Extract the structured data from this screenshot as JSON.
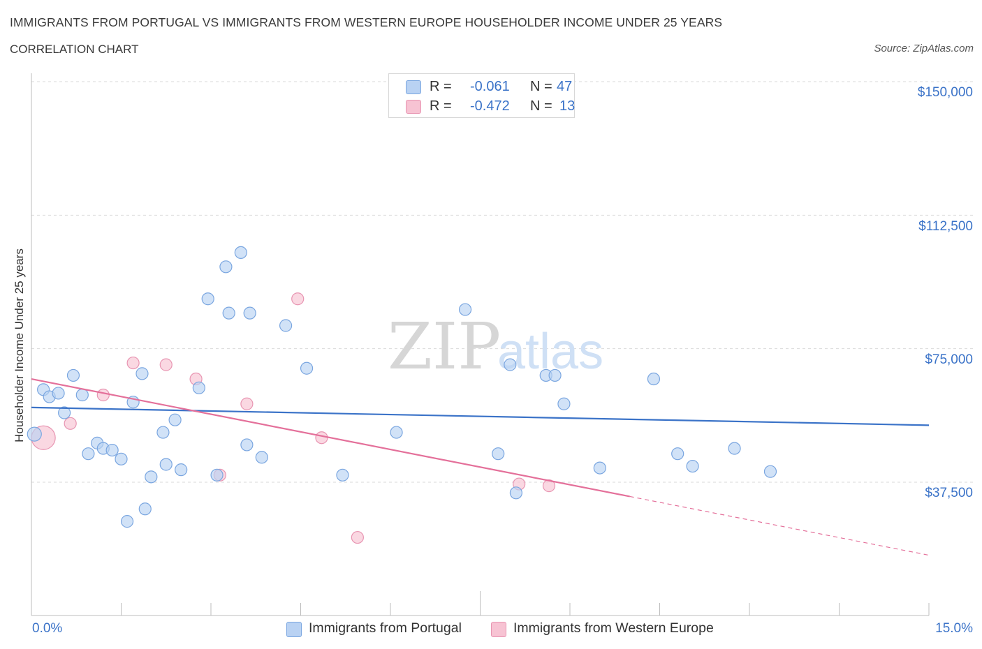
{
  "title": "IMMIGRANTS FROM PORTUGAL VS IMMIGRANTS FROM WESTERN EUROPE HOUSEHOLDER INCOME UNDER 25 YEARS",
  "subtitle": "CORRELATION CHART",
  "source": "Source: ZipAtlas.com",
  "watermark": {
    "zip": "ZIP",
    "atlas": "atlas"
  },
  "colors": {
    "blue": "#3b73c8",
    "blue_fill": "#b9d2f3",
    "blue_stroke": "#7aa6e0",
    "pink": "#e4709a",
    "pink_fill": "#f7c3d3",
    "pink_stroke": "#e895b2",
    "grid": "#d9d9d9"
  },
  "legend": {
    "rows": [
      {
        "r_label": "R =",
        "r_value": "-0.061",
        "n_label": "N =",
        "n_value": "47"
      },
      {
        "r_label": "R =",
        "r_value": "-0.472",
        "n_label": "N =",
        "n_value": "13"
      }
    ]
  },
  "chart_data": {
    "type": "scatter",
    "title": "IMMIGRANTS FROM PORTUGAL VS IMMIGRANTS FROM WESTERN EUROPE HOUSEHOLDER INCOME UNDER 25 YEARS",
    "xlabel": "",
    "ylabel": "Householder Income Under 25 years",
    "xlim": [
      0,
      15
    ],
    "ylim": [
      0,
      152000
    ],
    "x_tick_labels": [
      "0.0%",
      "15.0%"
    ],
    "y_ticks": [
      37500,
      75000,
      112500,
      150000
    ],
    "y_tick_labels": [
      "$37,500",
      "$75,000",
      "$112,500",
      "$150,000"
    ],
    "grid": true,
    "series": [
      {
        "name": "Immigrants from Portugal",
        "color": "#3b73c8",
        "points": [
          {
            "x": 0.05,
            "y": 51000,
            "size": "large"
          },
          {
            "x": 0.2,
            "y": 63500
          },
          {
            "x": 0.3,
            "y": 61500
          },
          {
            "x": 0.45,
            "y": 62500
          },
          {
            "x": 0.55,
            "y": 57000
          },
          {
            "x": 0.7,
            "y": 67500
          },
          {
            "x": 0.85,
            "y": 62000
          },
          {
            "x": 0.95,
            "y": 45500
          },
          {
            "x": 1.1,
            "y": 48500
          },
          {
            "x": 1.2,
            "y": 47000
          },
          {
            "x": 1.35,
            "y": 46500
          },
          {
            "x": 1.5,
            "y": 44000
          },
          {
            "x": 1.6,
            "y": 26500
          },
          {
            "x": 1.7,
            "y": 60000
          },
          {
            "x": 1.85,
            "y": 68000
          },
          {
            "x": 1.9,
            "y": 30000
          },
          {
            "x": 2.0,
            "y": 39000
          },
          {
            "x": 2.2,
            "y": 51500
          },
          {
            "x": 2.25,
            "y": 42500
          },
          {
            "x": 2.4,
            "y": 55000
          },
          {
            "x": 2.5,
            "y": 41000
          },
          {
            "x": 2.8,
            "y": 64000
          },
          {
            "x": 2.95,
            "y": 89000
          },
          {
            "x": 3.1,
            "y": 39500
          },
          {
            "x": 3.25,
            "y": 98000
          },
          {
            "x": 3.3,
            "y": 85000
          },
          {
            "x": 3.5,
            "y": 102000
          },
          {
            "x": 3.6,
            "y": 48000
          },
          {
            "x": 3.65,
            "y": 85000
          },
          {
            "x": 3.85,
            "y": 44500
          },
          {
            "x": 4.25,
            "y": 81500
          },
          {
            "x": 4.6,
            "y": 69500
          },
          {
            "x": 5.2,
            "y": 39500
          },
          {
            "x": 6.1,
            "y": 51500
          },
          {
            "x": 7.25,
            "y": 86000
          },
          {
            "x": 7.8,
            "y": 45500
          },
          {
            "x": 8.0,
            "y": 70500
          },
          {
            "x": 8.1,
            "y": 34500
          },
          {
            "x": 8.6,
            "y": 67500
          },
          {
            "x": 8.75,
            "y": 67500
          },
          {
            "x": 8.9,
            "y": 59500
          },
          {
            "x": 9.5,
            "y": 41500
          },
          {
            "x": 10.4,
            "y": 66500
          },
          {
            "x": 10.8,
            "y": 45500
          },
          {
            "x": 11.05,
            "y": 42000
          },
          {
            "x": 11.75,
            "y": 47000
          },
          {
            "x": 12.35,
            "y": 40500
          }
        ],
        "trend": {
          "x": [
            0,
            15
          ],
          "y": [
            58500,
            53500
          ],
          "style": "solid"
        }
      },
      {
        "name": "Immigrants from Western Europe",
        "color": "#e4709a",
        "points": [
          {
            "x": 0.2,
            "y": 50000,
            "size": "large"
          },
          {
            "x": 0.65,
            "y": 54000
          },
          {
            "x": 1.2,
            "y": 62000
          },
          {
            "x": 1.7,
            "y": 71000
          },
          {
            "x": 2.25,
            "y": 70500
          },
          {
            "x": 2.75,
            "y": 66500
          },
          {
            "x": 3.15,
            "y": 39500
          },
          {
            "x": 3.6,
            "y": 59500
          },
          {
            "x": 4.45,
            "y": 89000
          },
          {
            "x": 4.85,
            "y": 50000
          },
          {
            "x": 5.45,
            "y": 22000
          },
          {
            "x": 8.15,
            "y": 37000
          },
          {
            "x": 8.65,
            "y": 36500
          }
        ],
        "trend": {
          "x": [
            0,
            10.0
          ],
          "y": [
            66500,
            33500
          ],
          "style": "solid",
          "extension": {
            "x": [
              10.0,
              15
            ],
            "y": [
              33500,
              17000
            ],
            "style": "dashed"
          }
        }
      }
    ]
  },
  "bottom_legend": [
    {
      "label": "Immigrants from Portugal"
    },
    {
      "label": "Immigrants from Western Europe"
    }
  ]
}
